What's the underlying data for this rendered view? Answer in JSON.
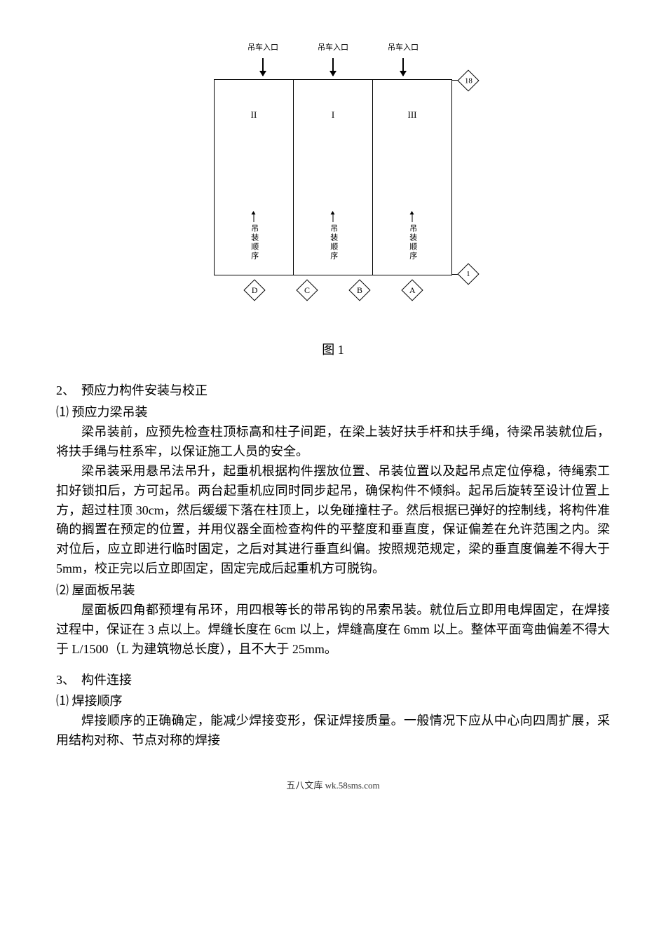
{
  "diagram": {
    "entry_labels": [
      "吊车入口",
      "吊车入口",
      "吊车入口"
    ],
    "columns": [
      {
        "top": "II",
        "vertical": "吊装顺序"
      },
      {
        "top": "I",
        "vertical": "吊装顺序"
      },
      {
        "top": "III",
        "vertical": "吊装顺序"
      }
    ],
    "right_top": "18",
    "right_bottom": "1",
    "bottom_labels": [
      "D",
      "C",
      "B",
      "A"
    ]
  },
  "figure_caption": "图 1",
  "section2": {
    "heading": "2、　预应力构件安装与校正",
    "sub1": "⑴ 预应力梁吊装",
    "para1": "梁吊装前，应预先检查柱顶标高和柱子间距，在梁上装好扶手杆和扶手绳，待梁吊装就位后，将扶手绳与柱系牢，以保证施工人员的安全。",
    "para2": "梁吊装采用悬吊法吊升，起重机根据构件摆放位置、吊装位置以及起吊点定位停稳，待绳索工扣好锁扣后，方可起吊。两台起重机应同时同步起吊，确保构件不倾斜。起吊后旋转至设计位置上方，超过柱顶 30cm，然后缓缓下落在柱顶上，以免碰撞柱子。然后根据已弹好的控制线，将构件准确的搁置在预定的位置，并用仪器全面检查构件的平整度和垂直度，保证偏差在允许范围之内。梁对位后，应立即进行临时固定，之后对其进行垂直纠偏。按照规范规定，梁的垂直度偏差不得大于 5mm，校正完以后立即固定，固定完成后起重机方可脱钩。",
    "sub2": "⑵ 屋面板吊装",
    "para3": "屋面板四角都预埋有吊环，用四根等长的带吊钩的吊索吊装。就位后立即用电焊固定，在焊接过程中，保证在 3 点以上。焊缝长度在 6cm 以上，焊缝高度在 6mm 以上。整体平面弯曲偏差不得大于 L/1500（L 为建筑物总长度），且不大于 25mm。"
  },
  "section3": {
    "heading": "3、　构件连接",
    "sub1": "⑴  焊接顺序",
    "para1": "焊接顺序的正确确定，能减少焊接变形，保证焊接质量。一般情况下应从中心向四周扩展，采用结构对称、节点对称的焊接"
  },
  "footer": "五八文库 wk.58sms.com"
}
